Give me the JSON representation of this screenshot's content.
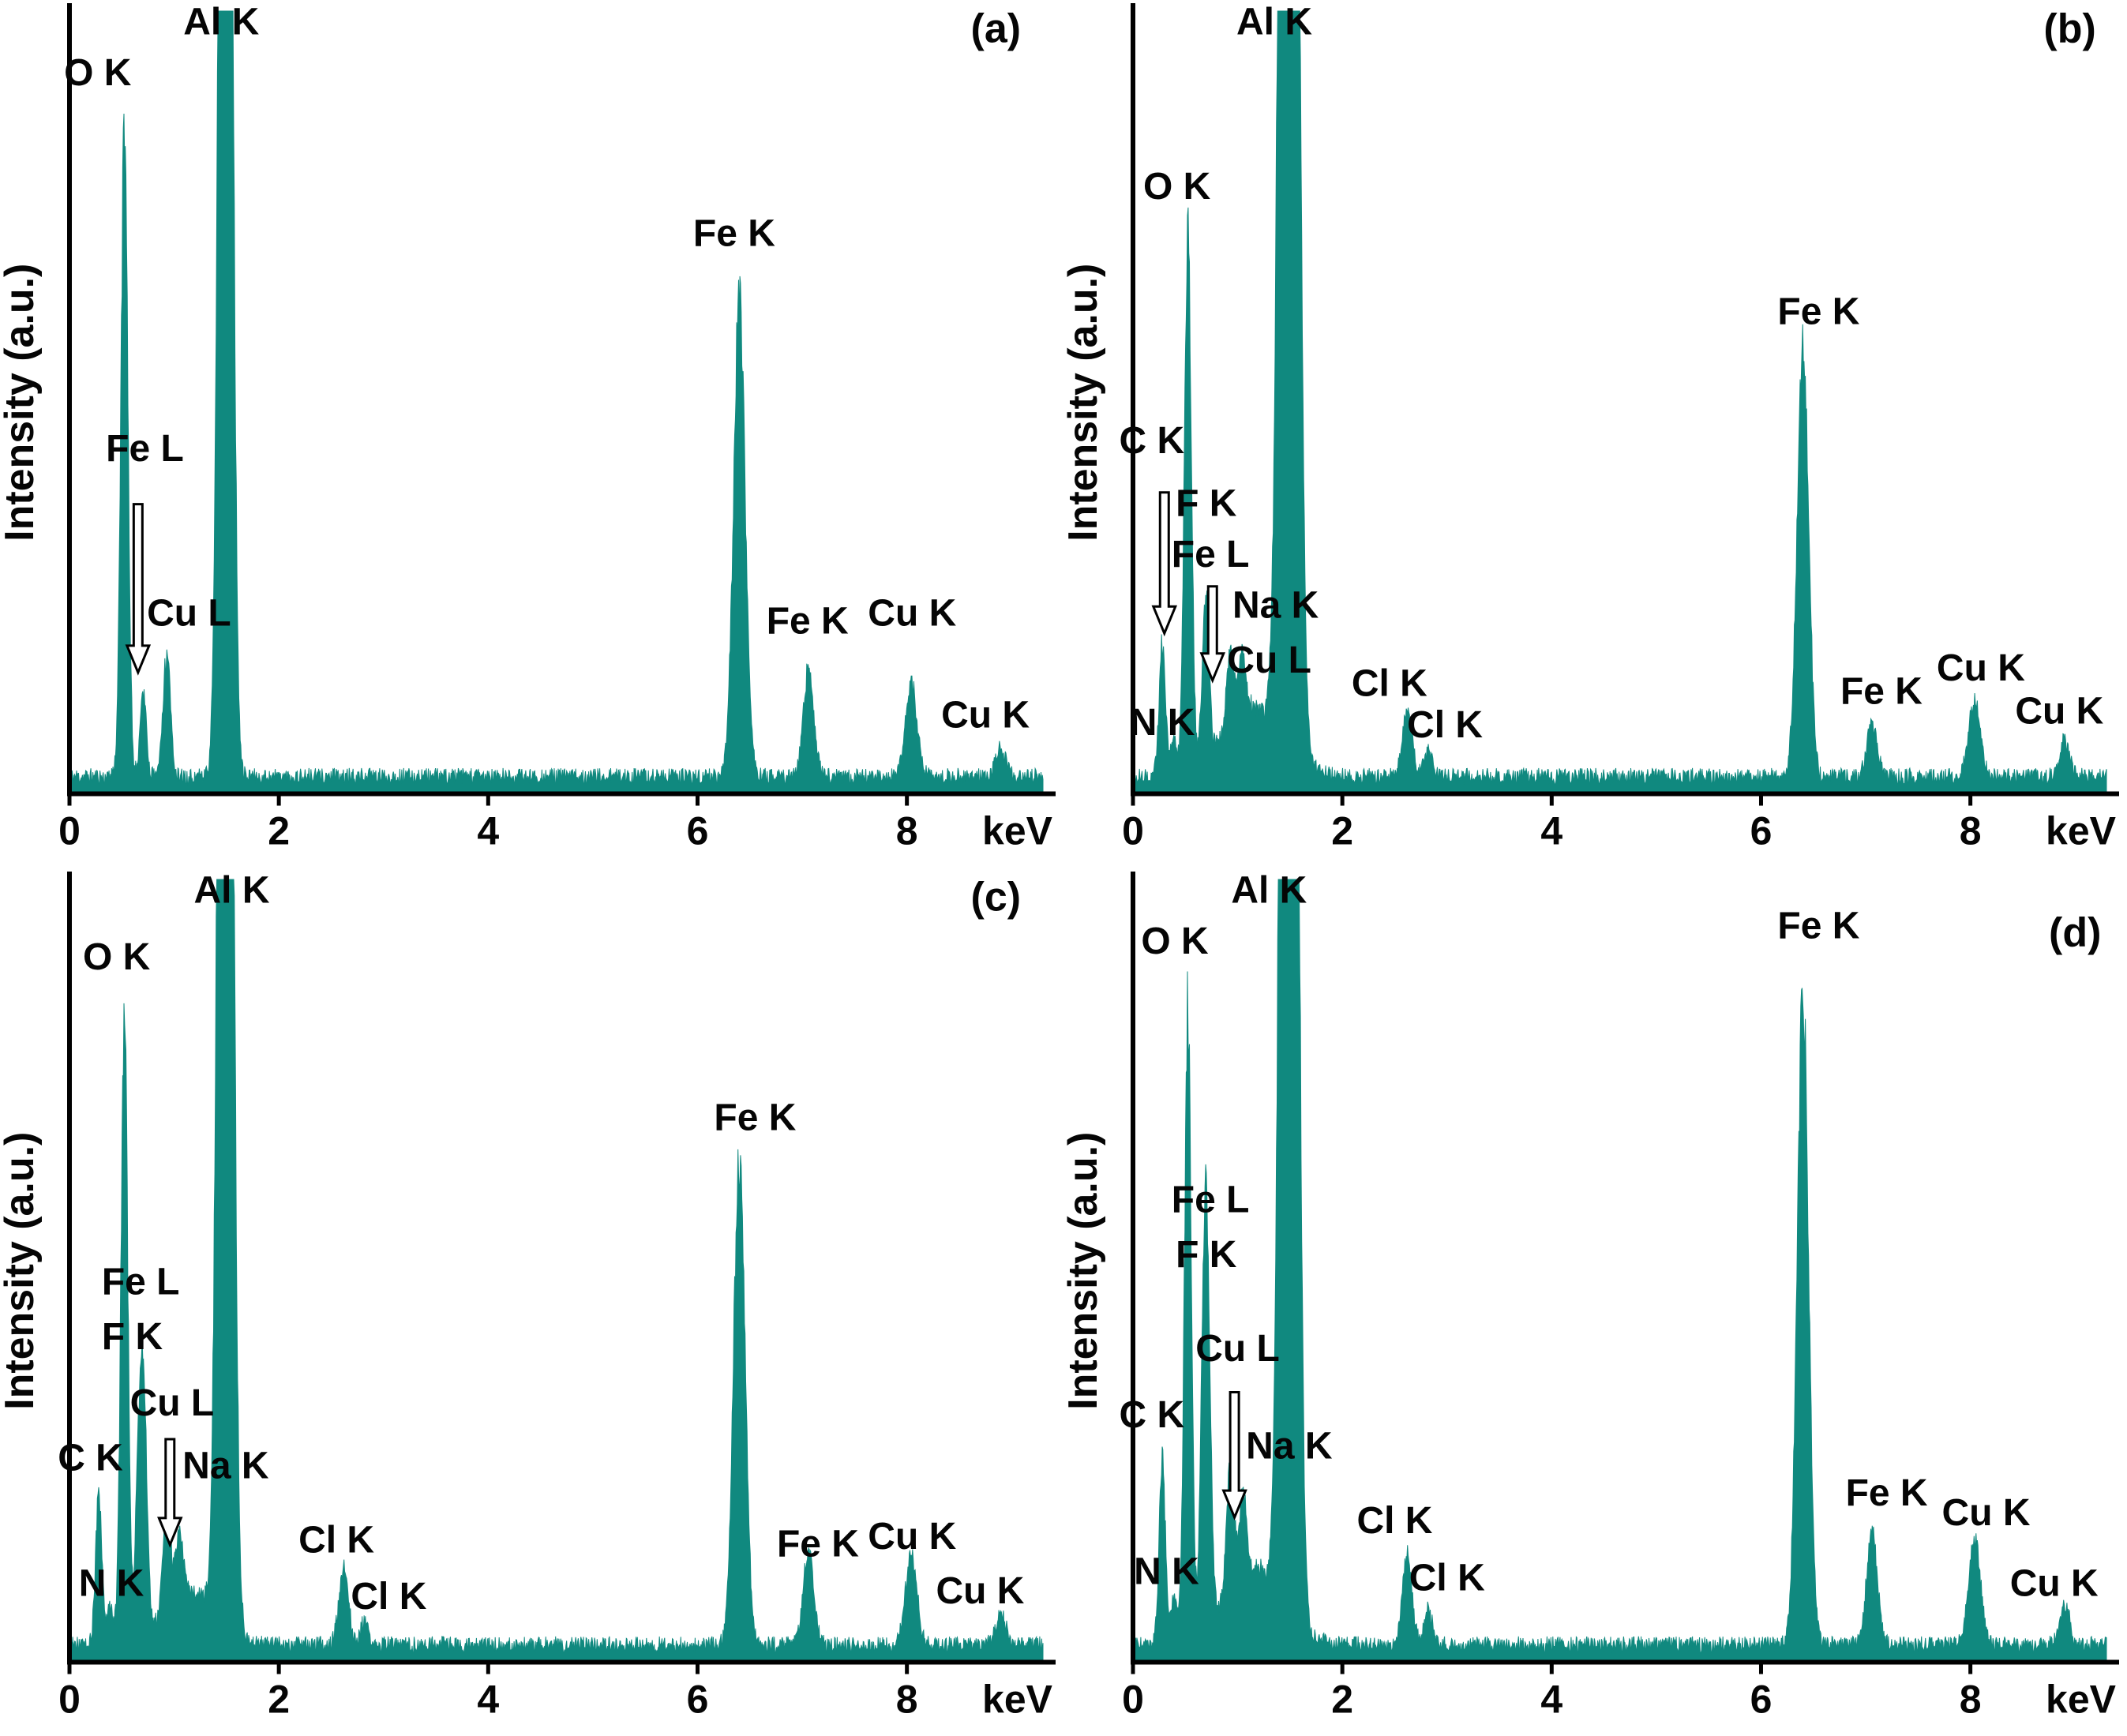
{
  "figure": {
    "background": "#ffffff",
    "spectrum_color": "#10897f",
    "axis_color": "#000000",
    "text_color": "#050505",
    "y_axis_label": "Intensity (a.u.)",
    "x_axis_unit": "keV"
  },
  "chart_data": [
    {
      "type": "area",
      "panel_label": {
        "text": "(a)",
        "x": 8.85,
        "y": 0.96
      },
      "xlabel": "keV",
      "ylabel": "Intensity (a.u.)",
      "xlim": [
        0,
        9.3
      ],
      "x_ticks": [
        0,
        2,
        4,
        6,
        8
      ],
      "peaks": [
        {
          "element": "O K",
          "keV": 0.525,
          "height": 0.84,
          "sigma": 0.033
        },
        {
          "element": "Fe L",
          "keV": 0.705,
          "height": 0.11,
          "sigma": 0.03
        },
        {
          "element": "Cu L",
          "keV": 0.93,
          "height": 0.16,
          "sigma": 0.035
        },
        {
          "element": "Al K",
          "keV": 1.49,
          "height": 3.0,
          "sigma": 0.05
        },
        {
          "element": "Fe K",
          "keV": 6.4,
          "height": 0.62,
          "sigma": 0.055
        },
        {
          "element": "Fe K",
          "keV": 7.06,
          "height": 0.14,
          "sigma": 0.05
        },
        {
          "element": "Cu K",
          "keV": 8.04,
          "height": 0.12,
          "sigma": 0.055
        },
        {
          "element": "Cu K",
          "keV": 8.9,
          "height": 0.035,
          "sigma": 0.05
        }
      ],
      "labels": [
        {
          "text": "O K",
          "x": 0.27,
          "y": 0.905
        },
        {
          "text": "Al K",
          "x": 1.45,
          "y": 0.97
        },
        {
          "text": "Fe L",
          "x": 0.72,
          "y": 0.425
        },
        {
          "text": "Cu L",
          "x": 0.74,
          "y": 0.215,
          "anchor": "start"
        },
        {
          "text": "Fe K",
          "x": 6.35,
          "y": 0.7
        },
        {
          "text": "Fe K",
          "x": 7.05,
          "y": 0.205
        },
        {
          "text": "Cu K",
          "x": 8.05,
          "y": 0.215
        },
        {
          "text": "Cu K",
          "x": 8.75,
          "y": 0.085
        }
      ],
      "arrows": [
        {
          "x": 0.655,
          "y_top": 0.37,
          "y_bottom": 0.155
        }
      ]
    },
    {
      "type": "area",
      "panel_label": {
        "text": "(b)",
        "x": 8.95,
        "y": 0.96
      },
      "xlabel": "keV",
      "ylabel": "Intensity (a.u.)",
      "xlim": [
        0,
        9.3
      ],
      "x_ticks": [
        0,
        2,
        4,
        6,
        8
      ],
      "peaks": [
        {
          "element": "C K",
          "keV": 0.28,
          "height": 0.17,
          "sigma": 0.03
        },
        {
          "element": "N K",
          "keV": 0.39,
          "height": 0.05,
          "sigma": 0.028
        },
        {
          "element": "O K",
          "keV": 0.525,
          "height": 0.7,
          "sigma": 0.033
        },
        {
          "element": "F K",
          "keV": 0.68,
          "height": 0.1,
          "sigma": 0.03
        },
        {
          "element": "Fe L",
          "keV": 0.705,
          "height": 0.13,
          "sigma": 0.03
        },
        {
          "element": "Cu L",
          "keV": 0.93,
          "height": 0.1,
          "sigma": 0.035
        },
        {
          "element": "Na K",
          "keV": 1.04,
          "height": 0.08,
          "sigma": 0.033
        },
        {
          "element": "continuum",
          "keV": 1.15,
          "height": 0.09,
          "sigma": 0.28
        },
        {
          "element": "Al K",
          "keV": 1.49,
          "height": 4.0,
          "sigma": 0.065
        },
        {
          "element": "Cl K",
          "keV": 2.62,
          "height": 0.085,
          "sigma": 0.045
        },
        {
          "element": "Cl K",
          "keV": 2.82,
          "height": 0.03,
          "sigma": 0.04
        },
        {
          "element": "Fe K",
          "keV": 6.4,
          "height": 0.55,
          "sigma": 0.055
        },
        {
          "element": "Fe K",
          "keV": 7.06,
          "height": 0.07,
          "sigma": 0.05
        },
        {
          "element": "Cu K",
          "keV": 8.04,
          "height": 0.1,
          "sigma": 0.055
        },
        {
          "element": "Cu K",
          "keV": 8.9,
          "height": 0.045,
          "sigma": 0.05
        }
      ],
      "labels": [
        {
          "text": "Al K",
          "x": 1.35,
          "y": 0.97
        },
        {
          "text": "O K",
          "x": 0.42,
          "y": 0.76
        },
        {
          "text": "C K",
          "x": 0.18,
          "y": 0.435
        },
        {
          "text": "F K",
          "x": 0.7,
          "y": 0.355
        },
        {
          "text": "Fe L",
          "x": 0.74,
          "y": 0.29
        },
        {
          "text": "Na K",
          "x": 0.95,
          "y": 0.225,
          "anchor": "start"
        },
        {
          "text": "Cu L",
          "x": 0.9,
          "y": 0.155,
          "anchor": "start"
        },
        {
          "text": "N K",
          "x": 0.28,
          "y": 0.075
        },
        {
          "text": "Cl K",
          "x": 2.45,
          "y": 0.125
        },
        {
          "text": "Cl K",
          "x": 2.98,
          "y": 0.072
        },
        {
          "text": "Fe K",
          "x": 6.55,
          "y": 0.6
        },
        {
          "text": "Fe K",
          "x": 7.15,
          "y": 0.115
        },
        {
          "text": "Cu K",
          "x": 8.1,
          "y": 0.145
        },
        {
          "text": "Cu K",
          "x": 8.85,
          "y": 0.09
        }
      ],
      "arrows": [
        {
          "x": 0.3,
          "y_top": 0.385,
          "y_bottom": 0.205
        },
        {
          "x": 0.76,
          "y_top": 0.265,
          "y_bottom": 0.145
        }
      ]
    },
    {
      "type": "area",
      "panel_label": {
        "text": "(c)",
        "x": 8.85,
        "y": 0.96
      },
      "xlabel": "keV",
      "ylabel": "Intensity (a.u.)",
      "xlim": [
        0,
        9.3
      ],
      "x_ticks": [
        0,
        2,
        4,
        6,
        8
      ],
      "peaks": [
        {
          "element": "C K",
          "keV": 0.28,
          "height": 0.2,
          "sigma": 0.03
        },
        {
          "element": "N K",
          "keV": 0.39,
          "height": 0.05,
          "sigma": 0.028
        },
        {
          "element": "O K",
          "keV": 0.525,
          "height": 0.8,
          "sigma": 0.033
        },
        {
          "element": "F K",
          "keV": 0.66,
          "height": 0.2,
          "sigma": 0.03
        },
        {
          "element": "Fe L",
          "keV": 0.71,
          "height": 0.3,
          "sigma": 0.032
        },
        {
          "element": "Cu L",
          "keV": 0.93,
          "height": 0.13,
          "sigma": 0.035
        },
        {
          "element": "Na K",
          "keV": 1.05,
          "height": 0.09,
          "sigma": 0.033
        },
        {
          "element": "continuum",
          "keV": 1.15,
          "height": 0.07,
          "sigma": 0.25
        },
        {
          "element": "Al K",
          "keV": 1.49,
          "height": 3.2,
          "sigma": 0.055
        },
        {
          "element": "Cl K",
          "keV": 2.62,
          "height": 0.1,
          "sigma": 0.045
        },
        {
          "element": "Cl K",
          "keV": 2.82,
          "height": 0.03,
          "sigma": 0.04
        },
        {
          "element": "Fe K",
          "keV": 6.4,
          "height": 0.63,
          "sigma": 0.055
        },
        {
          "element": "Fe K",
          "keV": 7.06,
          "height": 0.12,
          "sigma": 0.05
        },
        {
          "element": "Cu K",
          "keV": 8.04,
          "height": 0.12,
          "sigma": 0.055
        },
        {
          "element": "Cu K",
          "keV": 8.9,
          "height": 0.04,
          "sigma": 0.05
        }
      ],
      "labels": [
        {
          "text": "Al K",
          "x": 1.55,
          "y": 0.97
        },
        {
          "text": "O K",
          "x": 0.45,
          "y": 0.885
        },
        {
          "text": "Fe L",
          "x": 0.68,
          "y": 0.47
        },
        {
          "text": "F K",
          "x": 0.6,
          "y": 0.4
        },
        {
          "text": "Cu L",
          "x": 0.98,
          "y": 0.315
        },
        {
          "text": "Na K",
          "x": 1.08,
          "y": 0.235,
          "anchor": "start"
        },
        {
          "text": "C K",
          "x": 0.2,
          "y": 0.245
        },
        {
          "text": "N K",
          "x": 0.4,
          "y": 0.085
        },
        {
          "text": "Cl K",
          "x": 2.55,
          "y": 0.14
        },
        {
          "text": "Cl K",
          "x": 3.05,
          "y": 0.068
        },
        {
          "text": "Fe K",
          "x": 6.55,
          "y": 0.68
        },
        {
          "text": "Fe K",
          "x": 7.15,
          "y": 0.135
        },
        {
          "text": "Cu K",
          "x": 8.05,
          "y": 0.145
        },
        {
          "text": "Cu K",
          "x": 8.7,
          "y": 0.075
        }
      ],
      "arrows": [
        {
          "x": 0.96,
          "y_top": 0.285,
          "y_bottom": 0.15
        }
      ]
    },
    {
      "type": "area",
      "panel_label": {
        "text": "(d)",
        "x": 9.0,
        "y": 0.915
      },
      "xlabel": "keV",
      "ylabel": "Intensity (a.u.)",
      "xlim": [
        0,
        9.3
      ],
      "x_ticks": [
        0,
        2,
        4,
        6,
        8
      ],
      "peaks": [
        {
          "element": "C K",
          "keV": 0.28,
          "height": 0.24,
          "sigma": 0.03
        },
        {
          "element": "N K",
          "keV": 0.39,
          "height": 0.06,
          "sigma": 0.028
        },
        {
          "element": "O K",
          "keV": 0.525,
          "height": 0.82,
          "sigma": 0.033
        },
        {
          "element": "F K",
          "keV": 0.67,
          "height": 0.27,
          "sigma": 0.03
        },
        {
          "element": "Fe L",
          "keV": 0.71,
          "height": 0.42,
          "sigma": 0.032
        },
        {
          "element": "Cu L",
          "keV": 0.93,
          "height": 0.16,
          "sigma": 0.035
        },
        {
          "element": "Na K",
          "keV": 1.05,
          "height": 0.11,
          "sigma": 0.033
        },
        {
          "element": "continuum",
          "keV": 1.15,
          "height": 0.1,
          "sigma": 0.28
        },
        {
          "element": "Al K",
          "keV": 1.49,
          "height": 4.0,
          "sigma": 0.06
        },
        {
          "element": "Cl K",
          "keV": 2.62,
          "height": 0.12,
          "sigma": 0.045
        },
        {
          "element": "Cl K",
          "keV": 2.82,
          "height": 0.045,
          "sigma": 0.04
        },
        {
          "element": "Fe K",
          "keV": 6.4,
          "height": 0.84,
          "sigma": 0.055
        },
        {
          "element": "Fe K",
          "keV": 7.06,
          "height": 0.15,
          "sigma": 0.05
        },
        {
          "element": "Cu K",
          "keV": 8.04,
          "height": 0.14,
          "sigma": 0.055
        },
        {
          "element": "Cu K",
          "keV": 8.9,
          "height": 0.05,
          "sigma": 0.05
        }
      ],
      "labels": [
        {
          "text": "Al K",
          "x": 1.3,
          "y": 0.97
        },
        {
          "text": "O K",
          "x": 0.4,
          "y": 0.905
        },
        {
          "text": "Fe L",
          "x": 0.74,
          "y": 0.575
        },
        {
          "text": "F K",
          "x": 0.7,
          "y": 0.505
        },
        {
          "text": "C K",
          "x": 0.18,
          "y": 0.3
        },
        {
          "text": "Cu L",
          "x": 1.0,
          "y": 0.385
        },
        {
          "text": "Na K",
          "x": 1.08,
          "y": 0.26,
          "anchor": "start"
        },
        {
          "text": "N K",
          "x": 0.32,
          "y": 0.1
        },
        {
          "text": "Cl K",
          "x": 2.5,
          "y": 0.165
        },
        {
          "text": "Cl K",
          "x": 3.0,
          "y": 0.092
        },
        {
          "text": "Fe K",
          "x": 6.55,
          "y": 0.925
        },
        {
          "text": "Fe K",
          "x": 7.2,
          "y": 0.2
        },
        {
          "text": "Cu K",
          "x": 8.15,
          "y": 0.175
        },
        {
          "text": "Cu K",
          "x": 8.8,
          "y": 0.085
        }
      ],
      "arrows": [
        {
          "x": 0.97,
          "y_top": 0.345,
          "y_bottom": 0.185
        }
      ]
    }
  ]
}
